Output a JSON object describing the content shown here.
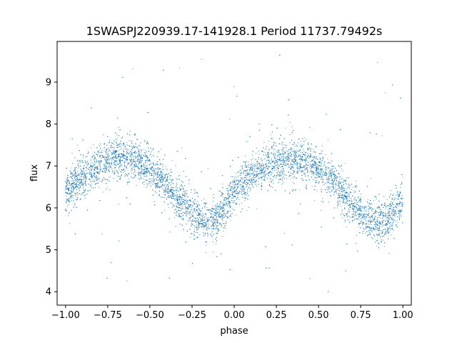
{
  "chart_data": {
    "type": "scatter",
    "title": "1SWASPJ220939.17-141928.1 Period 11737.79492s",
    "xlabel": "phase",
    "ylabel": "flux",
    "xlim": [
      -1.05,
      1.05
    ],
    "ylim": [
      3.68,
      9.97
    ],
    "xticks": [
      -1.0,
      -0.75,
      -0.5,
      -0.25,
      0.0,
      0.25,
      0.5,
      0.75,
      1.0
    ],
    "xtick_labels": [
      "−1.00",
      "−0.75",
      "−0.50",
      "−0.25",
      "0.00",
      "0.25",
      "0.50",
      "0.75",
      "1.00"
    ],
    "yticks": [
      4,
      5,
      6,
      7,
      8,
      9
    ],
    "ytick_labels": [
      "4",
      "5",
      "6",
      "7",
      "8",
      "9"
    ],
    "grid": false,
    "marker_color": "#1f77b4",
    "series": [
      {
        "description_of_shape": "phase-folded light curve, dense point cloud",
        "curve": [
          [
            -1.0,
            6.3
          ],
          [
            -0.95,
            6.55
          ],
          [
            -0.9,
            6.75
          ],
          [
            -0.85,
            6.9
          ],
          [
            -0.8,
            7.0
          ],
          [
            -0.75,
            7.12
          ],
          [
            -0.7,
            7.2
          ],
          [
            -0.65,
            7.22
          ],
          [
            -0.6,
            7.18
          ],
          [
            -0.55,
            7.08
          ],
          [
            -0.5,
            6.93
          ],
          [
            -0.45,
            6.75
          ],
          [
            -0.4,
            6.55
          ],
          [
            -0.35,
            6.33
          ],
          [
            -0.3,
            6.1
          ],
          [
            -0.25,
            5.88
          ],
          [
            -0.2,
            5.72
          ],
          [
            -0.15,
            5.65
          ],
          [
            -0.1,
            5.75
          ],
          [
            -0.05,
            6.05
          ],
          [
            0.0,
            6.35
          ],
          [
            0.05,
            6.6
          ],
          [
            0.1,
            6.78
          ],
          [
            0.15,
            6.92
          ],
          [
            0.2,
            7.02
          ],
          [
            0.25,
            7.1
          ],
          [
            0.3,
            7.15
          ],
          [
            0.35,
            7.17
          ],
          [
            0.4,
            7.12
          ],
          [
            0.45,
            7.03
          ],
          [
            0.5,
            6.9
          ],
          [
            0.55,
            6.72
          ],
          [
            0.6,
            6.52
          ],
          [
            0.65,
            6.3
          ],
          [
            0.7,
            6.08
          ],
          [
            0.75,
            5.88
          ],
          [
            0.8,
            5.72
          ],
          [
            0.85,
            5.65
          ],
          [
            0.9,
            5.72
          ],
          [
            0.95,
            5.92
          ],
          [
            1.0,
            6.2
          ]
        ],
        "scatter_sigma": 0.22,
        "outlier_range": [
          3.9,
          9.7
        ]
      }
    ]
  }
}
